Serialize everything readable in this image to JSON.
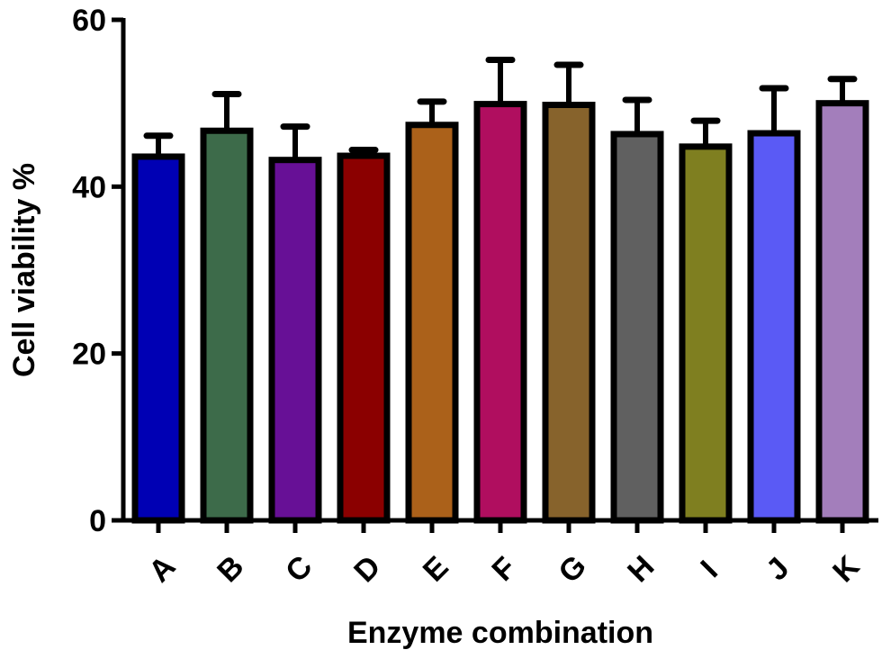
{
  "chart_data": {
    "type": "bar",
    "title": "",
    "xlabel": "Enzyme combination",
    "ylabel": "Cell viability %",
    "ylim": [
      0,
      60
    ],
    "yticks": [
      0,
      20,
      40,
      60
    ],
    "grid": false,
    "categories": [
      "A",
      "B",
      "C",
      "D",
      "E",
      "F",
      "G",
      "H",
      "I",
      "J",
      "K"
    ],
    "values": [
      43.6,
      46.7,
      43.2,
      43.7,
      47.4,
      49.9,
      49.8,
      46.3,
      44.8,
      46.4,
      50.0
    ],
    "errors": [
      2.5,
      4.4,
      4.0,
      0.7,
      2.8,
      5.3,
      4.8,
      4.1,
      3.1,
      5.4,
      2.9
    ],
    "colors": [
      "#0000b4",
      "#3d6b4a",
      "#671096",
      "#8b0000",
      "#ab611a",
      "#b00e5f",
      "#87632c",
      "#606060",
      "#7f7f20",
      "#5a5af5",
      "#a37ebb"
    ]
  }
}
